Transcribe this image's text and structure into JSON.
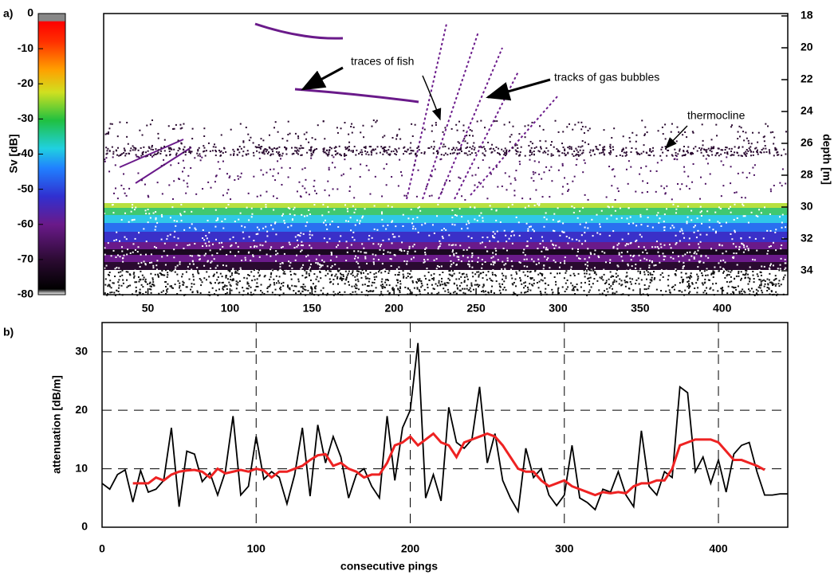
{
  "chart_data": [
    {
      "type": "echogram",
      "panel_label": "a)",
      "colorbar": {
        "label": "Sv [dB]",
        "lim": [
          -80,
          0
        ],
        "ticks": [
          0,
          -10,
          -20,
          -30,
          -40,
          -50,
          -60,
          -70,
          -80
        ]
      },
      "ylabel": "depth [m]",
      "ylim": [
        17.85,
        35.5
      ],
      "yticks": [
        18,
        20,
        22,
        24,
        26,
        28,
        30,
        32,
        34
      ],
      "xlim": [
        23,
        440
      ],
      "xticks": [
        50,
        100,
        150,
        200,
        250,
        300,
        350,
        400
      ],
      "annotations": [
        "traces of fish",
        "tracks of gas bubbles",
        "thermocline"
      ]
    },
    {
      "type": "line",
      "panel_label": "b)",
      "xlabel": "consecutive pings",
      "ylabel": "attenuation [dB/m]",
      "xlim": [
        0,
        445
      ],
      "xticks": [
        0,
        100,
        200,
        300,
        400
      ],
      "ylim": [
        0,
        35
      ],
      "yticks": [
        0,
        10,
        20,
        30
      ],
      "grid": true,
      "x": [
        0,
        5,
        10,
        15,
        20,
        25,
        30,
        35,
        40,
        45,
        50,
        55,
        60,
        65,
        70,
        75,
        80,
        85,
        90,
        95,
        100,
        105,
        110,
        115,
        120,
        125,
        130,
        135,
        140,
        145,
        150,
        155,
        160,
        165,
        170,
        175,
        180,
        185,
        190,
        195,
        200,
        205,
        210,
        215,
        220,
        225,
        230,
        235,
        240,
        245,
        250,
        255,
        260,
        265,
        270,
        275,
        280,
        285,
        290,
        295,
        300,
        305,
        310,
        315,
        320,
        325,
        330,
        335,
        340,
        345,
        350,
        355,
        360,
        365,
        370,
        375,
        380,
        385,
        390,
        395,
        400,
        405,
        410,
        415,
        420,
        425,
        430,
        435,
        440,
        445
      ],
      "series": [
        {
          "color": "#000000",
          "values": [
            7.5,
            6.5,
            9,
            9.8,
            4.3,
            9.7,
            6,
            6.5,
            8,
            17,
            3.5,
            13,
            12.5,
            7.8,
            9.3,
            5.5,
            9.5,
            19,
            5.5,
            7,
            15.5,
            8.2,
            9.5,
            8.5,
            4,
            9,
            17,
            5.3,
            17.5,
            11,
            15.5,
            12,
            5,
            9,
            10,
            7,
            5,
            19,
            8,
            17,
            20,
            31.5,
            5,
            9,
            4.5,
            20.5,
            14.5,
            13.5,
            15,
            24,
            11,
            16,
            8,
            5,
            2.7,
            13.5,
            8.5,
            10,
            5.5,
            3.7,
            5.5,
            14,
            5,
            4.2,
            3,
            6.5,
            6,
            9.5,
            5.5,
            3.5,
            16.5,
            7,
            5.5,
            9.5,
            8.5,
            24,
            23,
            9.5,
            12,
            7.5,
            11.5,
            6,
            12.5,
            14,
            14.5,
            9.5,
            5.5,
            5.5,
            5.7,
            5.7
          ]
        },
        {
          "color": "#ee2222",
          "values": [
            null,
            null,
            null,
            null,
            7.5,
            7.5,
            7.5,
            8.5,
            8,
            9,
            9.5,
            9.7,
            9.8,
            9.5,
            8.5,
            10,
            9.2,
            9.5,
            9.8,
            9.5,
            10,
            9.7,
            8.5,
            9.5,
            9.5,
            10,
            10.5,
            11.5,
            12.3,
            12.5,
            10.5,
            11,
            10,
            9.5,
            8.5,
            9,
            9,
            11,
            14,
            14.5,
            15.5,
            14,
            15,
            16,
            14.5,
            14,
            12,
            14.5,
            15,
            15.5,
            16,
            15.5,
            14,
            12,
            10,
            9.5,
            9.5,
            8,
            7,
            7.5,
            8,
            7,
            6.5,
            6,
            5.5,
            6,
            5.8,
            6,
            5.8,
            7,
            7.5,
            7.5,
            8,
            8,
            10,
            14,
            14.5,
            15,
            15,
            15,
            14.5,
            13,
            11.5,
            11.5,
            11,
            10.5,
            9.8,
            null,
            null,
            null
          ]
        }
      ]
    }
  ]
}
